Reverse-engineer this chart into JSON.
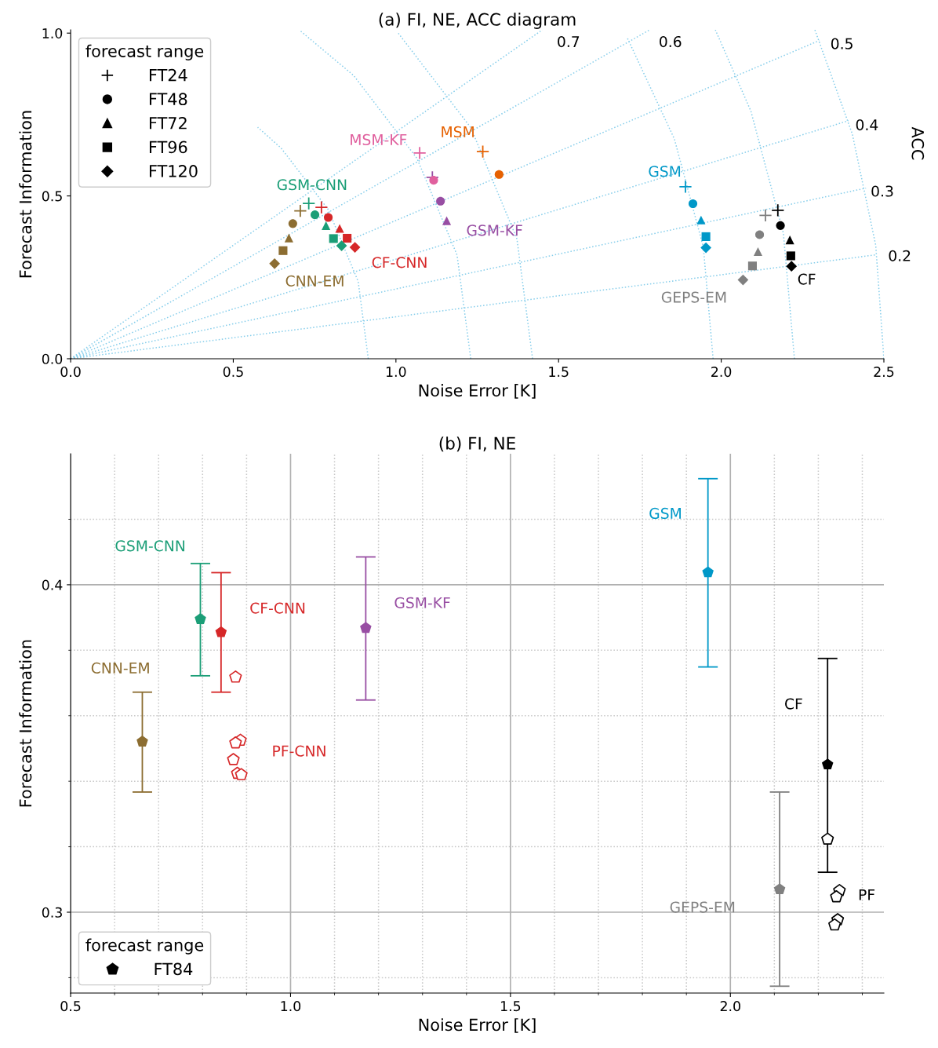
{
  "chart_data": [
    {
      "type": "scatter",
      "title": "(a) FI, NE, ACC diagram",
      "xlabel": "Noise Error [K]",
      "ylabel": "Forecast Information",
      "y2label": "ACC",
      "xlim": [
        0,
        2.5
      ],
      "ylim": [
        0,
        1.01
      ],
      "xticks": [
        {
          "value": 0,
          "label": "0.0"
        },
        0.5,
        {
          "value": 1,
          "label": "1.0"
        },
        1.5,
        {
          "value": 2,
          "label": "2.0"
        },
        2.5
      ],
      "yticks": [
        {
          "value": 0,
          "label": "0.0"
        },
        0.5,
        {
          "value": 1,
          "label": "1.0"
        }
      ],
      "legend": "top left",
      "legend_title": "forecast range",
      "series": [
        {
          "type": "line",
          "color": "#87ceeb",
          "line_style": "dotted",
          "marker": "none",
          "x": [
            0,
            2.475
          ],
          "values": [
            0,
            0.319
          ]
        },
        {
          "type": "line",
          "color": "#87ceeb",
          "line_style": "dotted",
          "marker": "none",
          "x": [
            0,
            2.445
          ],
          "values": [
            0,
            0.524
          ]
        },
        {
          "type": "line",
          "color": "#87ceeb",
          "line_style": "dotted",
          "marker": "none",
          "x": [
            0,
            2.391
          ],
          "values": [
            0,
            0.731
          ]
        },
        {
          "type": "line",
          "color": "#87ceeb",
          "line_style": "dotted",
          "marker": "none",
          "x": [
            0,
            2.301
          ],
          "values": [
            0,
            0.977
          ]
        },
        {
          "type": "line",
          "color": "#87ceeb",
          "line_style": "dotted",
          "marker": "none",
          "x": [
            0,
            1.78
          ],
          "values": [
            0,
            1.01
          ]
        },
        {
          "type": "line",
          "color": "#87ceeb",
          "line_style": "dotted",
          "marker": "none",
          "x": [
            0,
            1.45
          ],
          "values": [
            0,
            1.01
          ]
        },
        {
          "type": "line",
          "color": "#87ceeb",
          "line_style": "dotted",
          "marker": "none",
          "x": [
            0.915,
            0.884,
            0.792,
            0.647,
            0.575
          ],
          "values": [
            0,
            0.237,
            0.458,
            0.647,
            0.711
          ]
        },
        {
          "type": "line",
          "color": "#87ceeb",
          "line_style": "dotted",
          "marker": "none",
          "x": [
            1.23,
            1.188,
            1.065,
            0.87,
            0.706
          ],
          "values": [
            0,
            0.318,
            0.615,
            0.87,
            1.007
          ]
        },
        {
          "type": "line",
          "color": "#87ceeb",
          "line_style": "dotted",
          "marker": "none",
          "x": [
            1.42,
            1.372,
            1.23,
            1.004
          ],
          "values": [
            0,
            0.368,
            0.71,
            1.004
          ]
        },
        {
          "type": "line",
          "color": "#87ceeb",
          "line_style": "dotted",
          "marker": "none",
          "x": [
            1.975,
            1.945,
            1.856,
            1.71
          ],
          "values": [
            0,
            0.343,
            0.675,
            0.988
          ]
        },
        {
          "type": "line",
          "color": "#87ceeb",
          "line_style": "dotted",
          "marker": "none",
          "x": [
            2.225,
            2.191,
            2.091,
            1.982
          ],
          "values": [
            0,
            0.386,
            0.761,
            1.01
          ]
        },
        {
          "type": "line",
          "color": "#87ceeb",
          "line_style": "dotted",
          "marker": "none",
          "x": [
            2.5,
            2.475,
            2.403,
            2.288
          ],
          "values": [
            0,
            0.348,
            0.69,
            1.01
          ]
        },
        {
          "name": "FT24",
          "marker": "cross",
          "color": "#000000",
          "colors": [
            "#8c6d31",
            "#1b9e77",
            "#d62728",
            "#e0609e",
            "#e66101",
            "#984ea3",
            "#0098c8",
            "#808080",
            "#000000"
          ],
          "x": [
            0.706,
            0.732,
            0.771,
            1.073,
            1.267,
            1.112,
            1.89,
            2.136,
            2.174
          ],
          "values": [
            0.454,
            0.477,
            0.465,
            0.632,
            0.636,
            0.557,
            0.528,
            0.44,
            0.456
          ]
        },
        {
          "name": "FT48",
          "marker": "circle",
          "color": "#000000",
          "colors": [
            "#8c6d31",
            "#1b9e77",
            "#d62728",
            "#e0609e",
            "#e66101",
            "#984ea3",
            "#0098c8",
            "#808080",
            "#000000"
          ],
          "x": [
            0.683,
            0.751,
            0.792,
            1.116,
            1.317,
            1.137,
            1.913,
            2.118,
            2.182
          ],
          "values": [
            0.415,
            0.442,
            0.434,
            0.548,
            0.566,
            0.484,
            0.476,
            0.381,
            0.409
          ]
        },
        {
          "name": "FT72",
          "marker": "triangle",
          "color": "#000000",
          "colors": [
            "#8c6d31",
            "#1b9e77",
            "#d62728",
            "#984ea3",
            "#0098c8",
            "#808080",
            "#000000"
          ],
          "x": [
            0.671,
            0.785,
            0.827,
            1.156,
            1.938,
            2.113,
            2.211
          ],
          "values": [
            0.371,
            0.409,
            0.4,
            0.424,
            0.426,
            0.329,
            0.365
          ]
        },
        {
          "name": "FT96",
          "marker": "square",
          "color": "#000000",
          "colors": [
            "#8c6d31",
            "#1b9e77",
            "#d62728",
            "#0098c8",
            "#808080",
            "#000000"
          ],
          "x": [
            0.653,
            0.808,
            0.85,
            1.953,
            2.096,
            2.214
          ],
          "values": [
            0.332,
            0.369,
            0.37,
            0.375,
            0.285,
            0.316
          ]
        },
        {
          "name": "FT120",
          "marker": "diamond",
          "color": "#000000",
          "colors": [
            "#8c6d31",
            "#1b9e77",
            "#d62728",
            "#0098c8",
            "#808080",
            "#000000"
          ],
          "x": [
            0.627,
            0.833,
            0.874,
            1.953,
            2.067,
            2.216
          ],
          "values": [
            0.292,
            0.347,
            0.342,
            0.341,
            0.242,
            0.284
          ]
        }
      ],
      "annotations": [
        {
          "text": "0.7",
          "x": 1.45,
          "y": 1.01
        },
        {
          "text": "0.6",
          "x": 1.78,
          "y": 1.01
        },
        {
          "text": "0.5",
          "x": 2.301,
          "y": 0.977
        },
        {
          "text": "0.4",
          "x": 2.391,
          "y": 0.731
        },
        {
          "text": "0.3",
          "x": 2.445,
          "y": 0.524
        },
        {
          "text": "0.2",
          "x": 2.475,
          "y": 0.319
        },
        {
          "text": "MSM-KF",
          "x": 1.073,
          "y": 0.632
        },
        {
          "text": "MSM",
          "x": 1.267,
          "y": 0.636
        },
        {
          "text": "GSM-CNN",
          "x": 0.732,
          "y": 0.477
        },
        {
          "text": "GSM-KF",
          "x": 1.156,
          "y": 0.424
        },
        {
          "text": "CF-CNN",
          "x": 0.874,
          "y": 0.342
        },
        {
          "text": "CNN-EM",
          "x": 0.627,
          "y": 0.292
        },
        {
          "text": "GSM",
          "x": 1.89,
          "y": 0.528
        },
        {
          "text": "GEPS-EM",
          "x": 2.067,
          "y": 0.242
        },
        {
          "text": "CF",
          "x": 2.216,
          "y": 0.284
        }
      ]
    },
    {
      "type": "scatter",
      "title": "(b) FI, NE",
      "xlabel": "Noise Error [K]",
      "ylabel": "Forecast Information",
      "xlim": [
        0.5,
        2.349
      ],
      "ylim": [
        0.2753,
        0.44
      ],
      "xticks": [
        0.5,
        {
          "value": 0.6,
          "label": null
        },
        {
          "value": 0.7,
          "label": null
        },
        {
          "value": 0.8,
          "label": null
        },
        {
          "value": 0.9,
          "label": null
        },
        {
          "value": 1,
          "label": "1.0"
        },
        {
          "value": 1.1,
          "label": null
        },
        {
          "value": 1.2,
          "label": null
        },
        {
          "value": 1.3,
          "label": null
        },
        {
          "value": 1.4,
          "label": null
        },
        1.5,
        {
          "value": 1.6,
          "label": null
        },
        {
          "value": 1.7,
          "label": null
        },
        {
          "value": 1.8,
          "label": null
        },
        {
          "value": 1.9,
          "label": null
        },
        {
          "value": 2,
          "label": "2.0"
        },
        {
          "value": 2.1,
          "label": null
        },
        {
          "value": 2.2,
          "label": null
        },
        {
          "value": 2.3,
          "label": null
        }
      ],
      "yticks": [
        {
          "value": 0.28,
          "label": null
        },
        0.3,
        {
          "value": 0.32,
          "label": null
        },
        {
          "value": 0.34,
          "label": null
        },
        {
          "value": 0.36,
          "label": null
        },
        {
          "value": 0.38,
          "label": null
        },
        0.4,
        {
          "value": 0.42,
          "label": null
        }
      ],
      "grid": true,
      "legend": "bottom left",
      "legend_title": "forecast range",
      "series": [
        {
          "name": "FT84",
          "color": "#000000",
          "colors": [
            "#8c6d31",
            "#1b9e77",
            "#d62728",
            "#984ea3",
            "#0098c8",
            "#808080",
            "#000000"
          ],
          "x": [
            0.663,
            0.795,
            0.842,
            1.171,
            1.949,
            2.112,
            2.221
          ],
          "values": [
            0.3521,
            0.3895,
            0.3855,
            0.3868,
            0.4038,
            0.307,
            0.3451
          ],
          "errors": [
            [
              0.3367,
              0.3672
            ],
            [
              0.3722,
              0.4065
            ],
            [
              0.3672,
              0.4037
            ],
            [
              0.3648,
              0.4085
            ],
            [
              0.3749,
              0.4324
            ],
            [
              0.2774,
              0.3367
            ],
            [
              0.3122,
              0.3775
            ]
          ]
        },
        {
          "color": "#d62728",
          "x": [
            0.875,
            0.886,
            0.875,
            0.87,
            0.879,
            0.888
          ],
          "values": [
            0.3718,
            0.3525,
            0.3517,
            0.3466,
            0.3424,
            0.342
          ]
        },
        {
          "color": "#000000",
          "x": [
            2.221,
            2.248,
            2.241,
            2.244,
            2.237
          ],
          "values": [
            0.3223,
            0.3066,
            0.3047,
            0.2977,
            0.2961
          ]
        }
      ],
      "annotations": [
        {
          "text": "GSM-CNN",
          "x": 0.795,
          "y": 0.4065
        },
        {
          "text": "CF-CNN",
          "x": 0.842,
          "y": 0.3855
        },
        {
          "text": "GSM-KF",
          "x": 1.171,
          "y": 0.3868
        },
        {
          "text": "CNN-EM",
          "x": 0.663,
          "y": 0.3672
        },
        {
          "text": "PF-CNN",
          "x": 0.886,
          "y": 0.3525
        },
        {
          "text": "GSM",
          "x": 1.949,
          "y": 0.4324
        },
        "CF",
        "GEPS-EM",
        {
          "text": "PF",
          "x": 2.248,
          "y": 0.3066
        }
      ]
    }
  ]
}
